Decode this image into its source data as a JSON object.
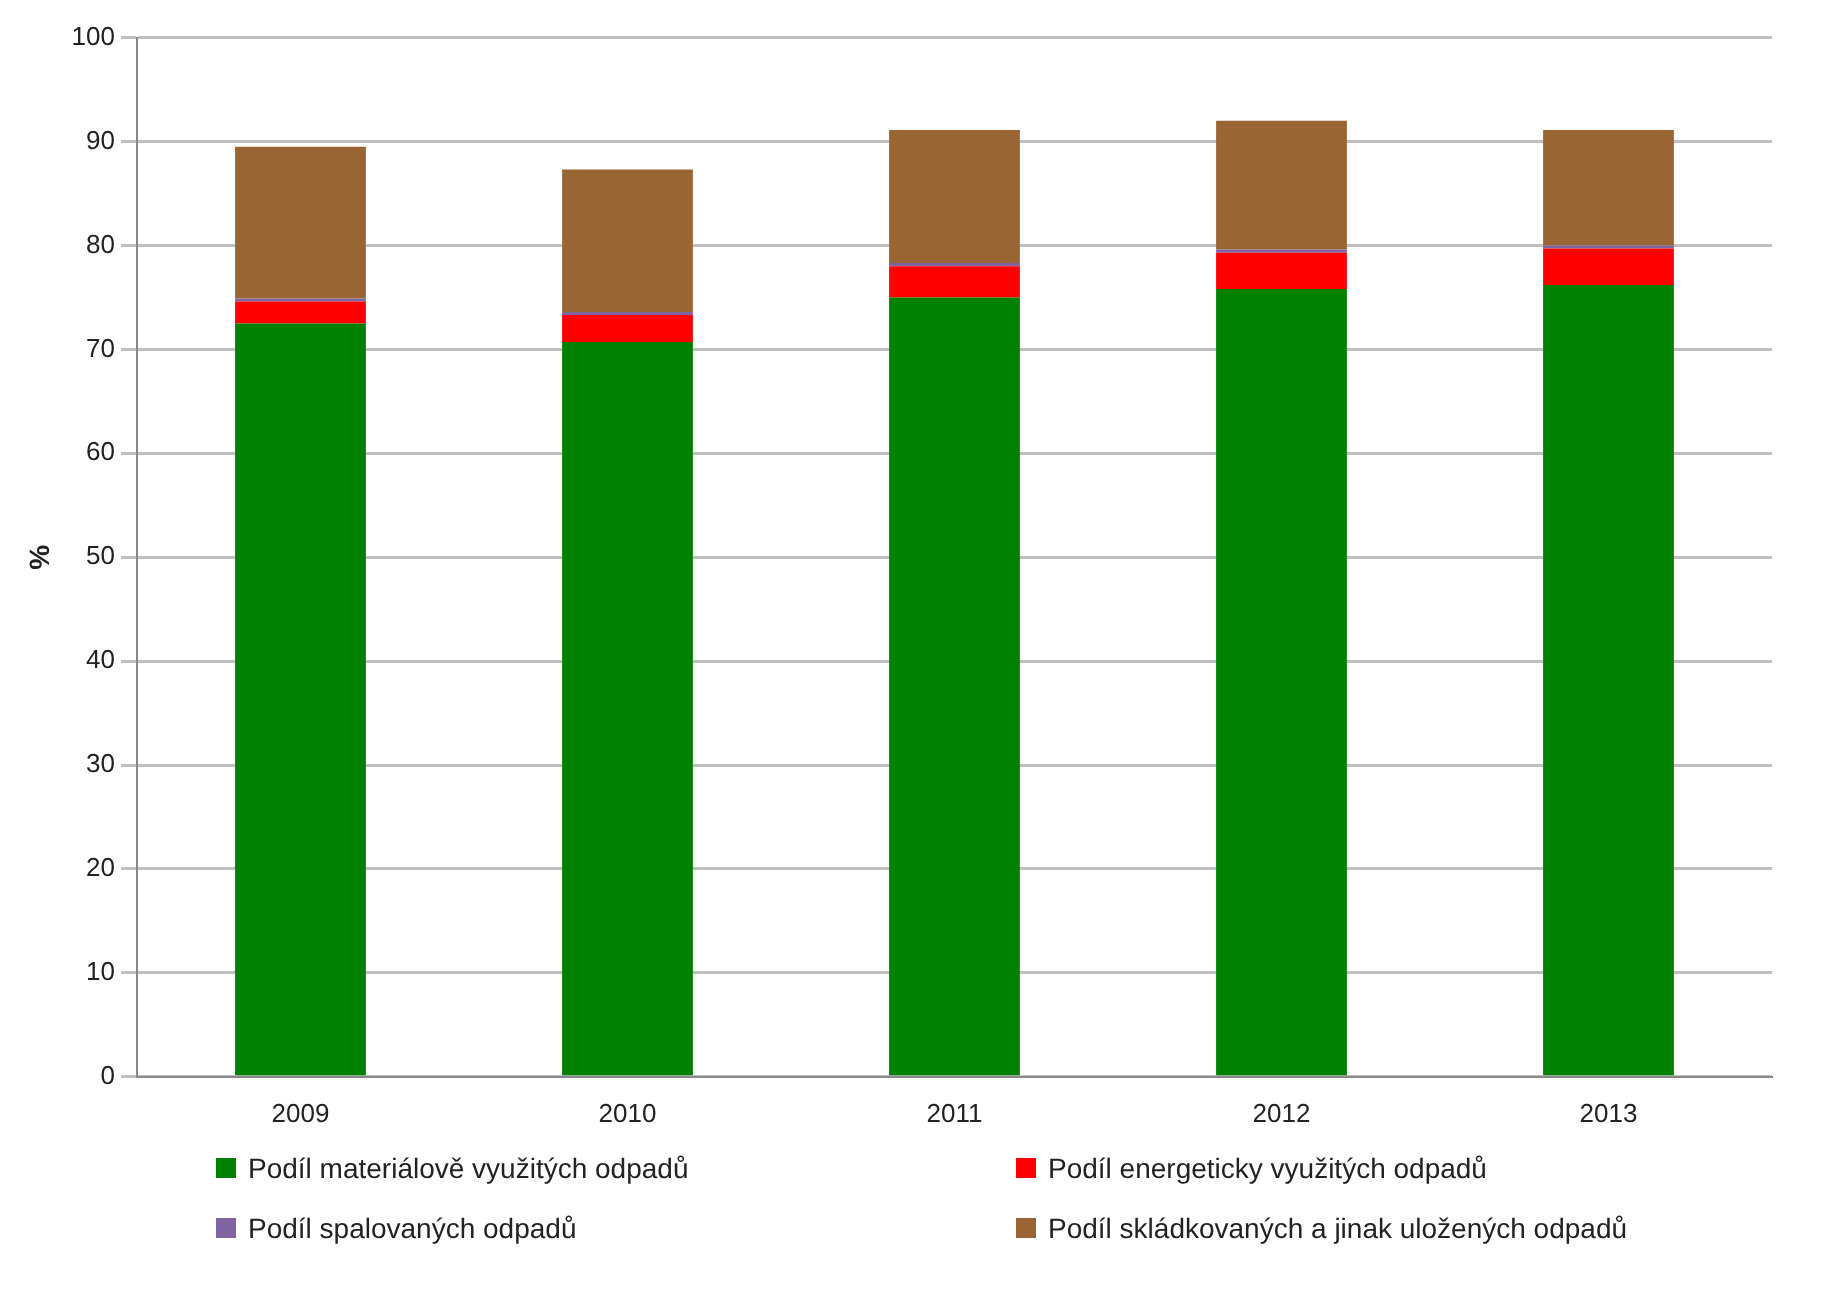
{
  "chart_data": {
    "type": "bar",
    "stacked": true,
    "ylabel": "%",
    "categories": [
      "2009",
      "2010",
      "2011",
      "2012",
      "2013"
    ],
    "series": [
      {
        "name": "Podíl materiálově využitých odpadů",
        "color": "#008000",
        "values": [
          72.5,
          70.7,
          75.0,
          75.8,
          76.2
        ]
      },
      {
        "name": "Podíl energeticky využitých odpadů",
        "color": "#ff0000",
        "values": [
          2.1,
          2.6,
          3.0,
          3.5,
          3.5
        ]
      },
      {
        "name": "Podíl spalovaných odpadů",
        "color": "#8064a2",
        "values": [
          0.3,
          0.3,
          0.3,
          0.3,
          0.3
        ]
      },
      {
        "name": "Podíl skládkovaných a jinak uložených odpadů",
        "color": "#996633",
        "values": [
          14.6,
          13.7,
          12.8,
          12.4,
          11.1
        ]
      }
    ],
    "ylim": [
      0,
      100
    ],
    "yticks": [
      0,
      10,
      20,
      30,
      40,
      50,
      60,
      70,
      80,
      90,
      100
    ],
    "grid": "y",
    "legend": "bottom"
  }
}
